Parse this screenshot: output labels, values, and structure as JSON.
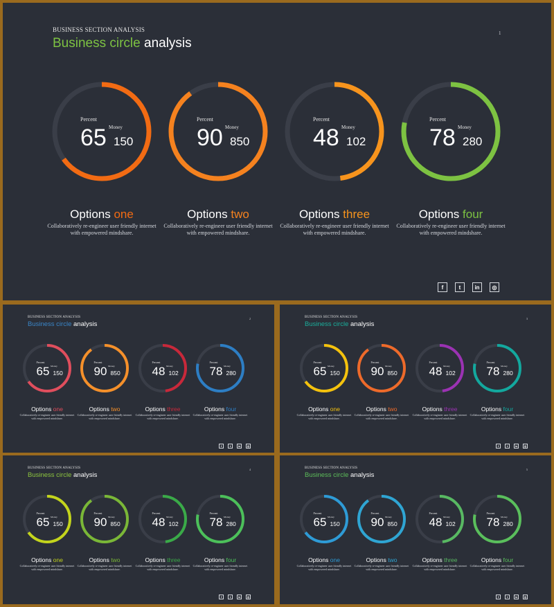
{
  "header": {
    "subtitle": "BUSINESS SECTION ANALYSIS",
    "title_accent": "Business circle",
    "title_rest": " analysis"
  },
  "options_word": "Options",
  "labels": {
    "percent": "Percent",
    "money": "Money"
  },
  "description": "Collaboratively re-engineer user friendly internet with empowered mindshare.",
  "items": [
    {
      "percent": 65,
      "money": 150,
      "suffix": "one"
    },
    {
      "percent": 90,
      "money": 850,
      "suffix": "two"
    },
    {
      "percent": 48,
      "money": 102,
      "suffix": "three"
    },
    {
      "percent": 78,
      "money": 280,
      "suffix": "four"
    }
  ],
  "social_icons": [
    {
      "name": "facebook-icon",
      "glyph": "f"
    },
    {
      "name": "twitter-icon",
      "glyph": "t"
    },
    {
      "name": "linkedin-icon",
      "glyph": "in"
    },
    {
      "name": "instagram-icon",
      "glyph": "◎"
    }
  ],
  "slides": [
    {
      "id": "slide-main",
      "page": "1",
      "title_color": "#7dc242",
      "colors": [
        "#f26b13",
        "#f5821f",
        "#f7941d",
        "#7dc242"
      ]
    },
    {
      "id": "slide-2",
      "page": "2",
      "title_color": "#3a86c8",
      "colors": [
        "#e04e5d",
        "#f5902a",
        "#c8283a",
        "#2d7ec4"
      ]
    },
    {
      "id": "slide-3",
      "page": "3",
      "title_color": "#1aaf9c",
      "colors": [
        "#f4c20d",
        "#ee6a2a",
        "#9b32b3",
        "#13a89e"
      ]
    },
    {
      "id": "slide-4",
      "page": "4",
      "title_color": "#8dc63f",
      "colors": [
        "#c3d41c",
        "#7ab737",
        "#3aaa48",
        "#4cc05a"
      ]
    },
    {
      "id": "slide-5",
      "page": "5",
      "title_color": "#5dbe5a",
      "colors": [
        "#2e9bd6",
        "#2fa5d3",
        "#58b962",
        "#5abf5c"
      ]
    }
  ],
  "ring_track_color": "#3a3e48"
}
